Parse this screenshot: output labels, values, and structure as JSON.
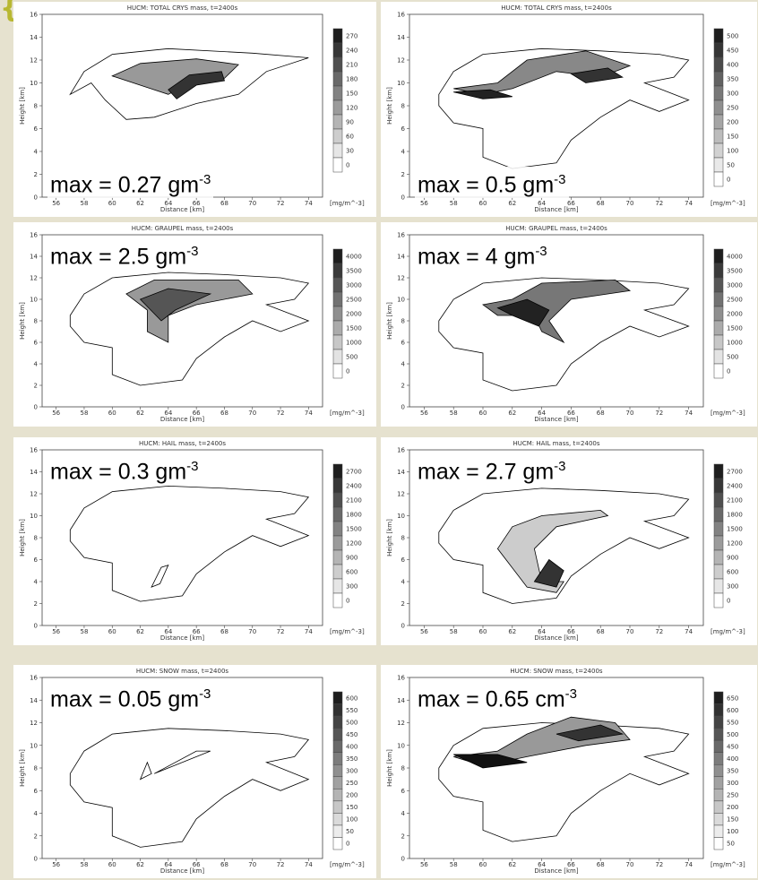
{
  "x_ticks": [
    "56",
    "58",
    "60",
    "62",
    "64",
    "66",
    "68",
    "70",
    "72",
    "74"
  ],
  "y_ticks": [
    "0",
    "2",
    "4",
    "6",
    "8",
    "10",
    "12",
    "14",
    "16"
  ],
  "x_label": "Distance [km]",
  "y_label": "Height [km]",
  "unit": "[mg/m^-3]",
  "panels": [
    {
      "title": "HUCM: TOTAL CRYS mass, t=2400s",
      "annotation": {
        "text": "max = 0.27 gm",
        "sup": "-3"
      },
      "colorbar_labels": [
        "270",
        "240",
        "210",
        "180",
        "150",
        "120",
        "90",
        "60",
        "30",
        "0"
      ]
    },
    {
      "title": "HUCM: TOTAL CRYS mass, t=2400s",
      "annotation": {
        "text": "max = 0.5 gm",
        "sup": "-3"
      },
      "colorbar_labels": [
        "500",
        "450",
        "400",
        "350",
        "300",
        "250",
        "200",
        "150",
        "100",
        "50",
        "0"
      ]
    },
    {
      "title": "HUCM: GRAUPEL mass, t=2400s",
      "annotation": {
        "text": "max = 2.5 gm",
        "sup": "-3"
      },
      "colorbar_labels": [
        "4000",
        "3500",
        "3000",
        "2500",
        "2000",
        "1500",
        "1000",
        "500",
        "0"
      ]
    },
    {
      "title": "HUCM: GRAUPEL mass, t=2400s",
      "annotation": {
        "text": "max = 4 gm",
        "sup": "-3"
      },
      "colorbar_labels": [
        "4000",
        "3500",
        "3000",
        "2500",
        "2000",
        "1500",
        "1000",
        "500",
        "0"
      ]
    },
    {
      "title": "HUCM: HAIL mass, t=2400s",
      "annotation": {
        "text": "max = 0.3 gm",
        "sup": "-3"
      },
      "colorbar_labels": [
        "2700",
        "2400",
        "2100",
        "1800",
        "1500",
        "1200",
        "900",
        "600",
        "300",
        "0"
      ]
    },
    {
      "title": "HUCM: HAIL mass, t=2400s",
      "annotation": {
        "text": "max = 2.7 gm",
        "sup": "-3"
      },
      "colorbar_labels": [
        "2700",
        "2400",
        "2100",
        "1800",
        "1500",
        "1200",
        "900",
        "600",
        "300",
        "0"
      ]
    },
    {
      "title": "HUCM: SNOW mass, t=2400s",
      "annotation": {
        "text": "max = 0.05 gm",
        "sup": "-3"
      },
      "colorbar_labels": [
        "600",
        "550",
        "500",
        "450",
        "400",
        "350",
        "300",
        "250",
        "200",
        "150",
        "100",
        "50",
        "0"
      ]
    },
    {
      "title": "HUCM: SNOW mass, t=2400s",
      "annotation": {
        "text": "max = 0.65 cm",
        "sup": "-3"
      },
      "colorbar_labels": [
        "650",
        "600",
        "550",
        "500",
        "450",
        "400",
        "350",
        "300",
        "250",
        "200",
        "150",
        "100",
        "50"
      ]
    }
  ]
}
